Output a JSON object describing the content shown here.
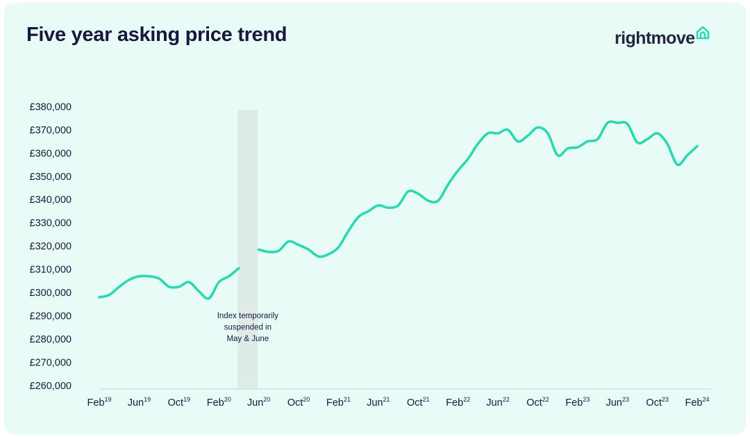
{
  "title": "Five year asking price trend",
  "brand": {
    "name": "rightmove",
    "icon": "house-icon",
    "color": "#262640",
    "icon_color": "#2dd8b6"
  },
  "colors": {
    "background": "#e9fbf6",
    "line": "#2bd8b4",
    "gap_band": "#dfebe7",
    "text": "#17183b",
    "axis": "#c9d6d2"
  },
  "chart_data": {
    "type": "line",
    "title": "Five year asking price trend",
    "xlabel": "",
    "ylabel": "",
    "ylim": [
      260000,
      380000
    ],
    "yticks": [
      "£260,000",
      "£270,000",
      "£280,000",
      "£290,000",
      "£300,000",
      "£310,000",
      "£320,000",
      "£330,000",
      "£340,000",
      "£350,000",
      "£360,000",
      "£370,000",
      "£380,000"
    ],
    "ytick_values": [
      260000,
      270000,
      280000,
      290000,
      300000,
      310000,
      320000,
      330000,
      340000,
      350000,
      360000,
      370000,
      380000
    ],
    "xticks": [
      {
        "label": "Feb",
        "year": "19",
        "month": "2019-02"
      },
      {
        "label": "Jun",
        "year": "19",
        "month": "2019-06"
      },
      {
        "label": "Oct",
        "year": "19",
        "month": "2019-10"
      },
      {
        "label": "Feb",
        "year": "20",
        "month": "2020-02"
      },
      {
        "label": "Jun",
        "year": "20",
        "month": "2020-06"
      },
      {
        "label": "Oct",
        "year": "20",
        "month": "2020-10"
      },
      {
        "label": "Feb",
        "year": "21",
        "month": "2021-02"
      },
      {
        "label": "Jun",
        "year": "21",
        "month": "2021-06"
      },
      {
        "label": "Oct",
        "year": "21",
        "month": "2021-10"
      },
      {
        "label": "Feb",
        "year": "22",
        "month": "2022-02"
      },
      {
        "label": "Jun",
        "year": "22",
        "month": "2022-06"
      },
      {
        "label": "Oct",
        "year": "22",
        "month": "2022-10"
      },
      {
        "label": "Feb",
        "year": "23",
        "month": "2023-02"
      },
      {
        "label": "Jun",
        "year": "23",
        "month": "2023-06"
      },
      {
        "label": "Oct",
        "year": "23",
        "month": "2023-10"
      },
      {
        "label": "Feb",
        "year": "24",
        "month": "2024-02"
      }
    ],
    "gap": {
      "from": "2020-04",
      "to": "2020-06",
      "note": [
        "Index temporarily",
        "suspended in",
        "May & June"
      ]
    },
    "series": [
      {
        "segments": [
          [
            [
              "2019-02",
              298000
            ],
            [
              "2019-03",
              299000
            ],
            [
              "2019-04",
              302500
            ],
            [
              "2019-05",
              305500
            ],
            [
              "2019-06",
              307000
            ],
            [
              "2019-07",
              307000
            ],
            [
              "2019-08",
              306000
            ],
            [
              "2019-09",
              302500
            ],
            [
              "2019-10",
              302500
            ],
            [
              "2019-11",
              304500
            ],
            [
              "2019-12",
              300500
            ],
            [
              "2020-01",
              297500
            ],
            [
              "2020-02",
              304500
            ],
            [
              "2020-03",
              307000
            ],
            [
              "2020-04",
              310500
            ]
          ],
          [
            [
              "2020-06",
              318500
            ],
            [
              "2020-07",
              317500
            ],
            [
              "2020-08",
              318000
            ],
            [
              "2020-09",
              322000
            ],
            [
              "2020-10",
              320500
            ],
            [
              "2020-11",
              318500
            ],
            [
              "2020-12",
              315500
            ],
            [
              "2021-01",
              316500
            ],
            [
              "2021-02",
              319500
            ],
            [
              "2021-03",
              326500
            ],
            [
              "2021-04",
              332500
            ],
            [
              "2021-05",
              335000
            ],
            [
              "2021-06",
              337500
            ],
            [
              "2021-07",
              336500
            ],
            [
              "2021-08",
              337500
            ],
            [
              "2021-09",
              343500
            ],
            [
              "2021-10",
              342500
            ],
            [
              "2021-11",
              339500
            ],
            [
              "2021-12",
              339500
            ],
            [
              "2022-01",
              346500
            ],
            [
              "2022-02",
              352500
            ],
            [
              "2022-03",
              357500
            ],
            [
              "2022-04",
              364000
            ],
            [
              "2022-05",
              368500
            ],
            [
              "2022-06",
              368500
            ],
            [
              "2022-07",
              370000
            ],
            [
              "2022-08",
              365000
            ],
            [
              "2022-09",
              367500
            ],
            [
              "2022-10",
              371000
            ],
            [
              "2022-11",
              368500
            ],
            [
              "2022-12",
              359000
            ],
            [
              "2023-01",
              362000
            ],
            [
              "2023-02",
              362500
            ],
            [
              "2023-03",
              365000
            ],
            [
              "2023-04",
              366000
            ],
            [
              "2023-05",
              373000
            ],
            [
              "2023-06",
              373000
            ],
            [
              "2023-07",
              372500
            ],
            [
              "2023-08",
              364500
            ],
            [
              "2023-09",
              366000
            ],
            [
              "2023-10",
              368500
            ],
            [
              "2023-11",
              364000
            ],
            [
              "2023-12",
              355000
            ],
            [
              "2024-01",
              359000
            ],
            [
              "2024-02",
              363000
            ]
          ]
        ]
      }
    ]
  }
}
